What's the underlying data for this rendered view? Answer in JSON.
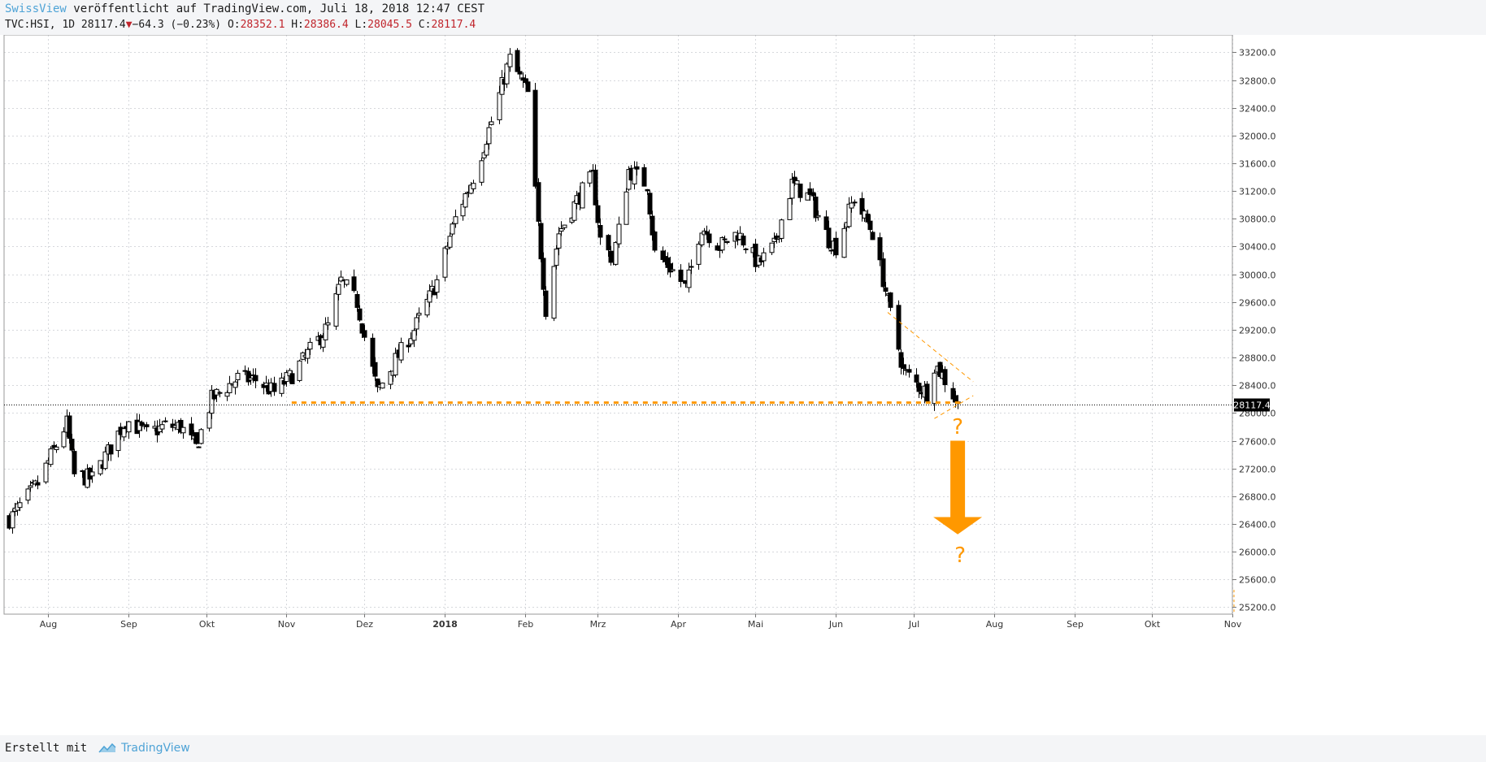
{
  "header": {
    "brand": "SwissView",
    "published": " veröffentlicht auf TradingView.com, Juli 18, 2018 12:47 CEST",
    "symbol": "TVC:HSI, 1D 28117.4",
    "change": "−64.3 (−0.23%)",
    "open_label": "O:",
    "open": "28352.1",
    "high_label": "H:",
    "high": "28386.4",
    "low_label": "L:",
    "low": "28045.5",
    "close_label": "C:",
    "close": "28117.4"
  },
  "footer": {
    "created_with": "Erstellt mit",
    "platform": "TradingView"
  },
  "colors": {
    "up_body": "#ffffff",
    "down_body": "#000000",
    "annotation": "#ff9800",
    "brand": "#4ea3d6",
    "price_label_bg": "#000000"
  },
  "chart_data": {
    "type": "candlestick",
    "symbol": "TVC:HSI",
    "interval": "1D",
    "x_axis_labels": [
      "Aug",
      "Sep",
      "Okt",
      "Nov",
      "Dez",
      "2018",
      "Feb",
      "Mrz",
      "Apr",
      "Mai",
      "Jun",
      "Jul",
      "Aug",
      "Sep",
      "Okt",
      "Nov"
    ],
    "y_ticks": [
      25200,
      25600,
      26000,
      26400,
      26800,
      27200,
      27600,
      28000,
      28400,
      28800,
      29200,
      29600,
      30000,
      30400,
      30800,
      31200,
      31600,
      32000,
      32400,
      32800,
      33200
    ],
    "ylim": [
      25100,
      33450
    ],
    "current_price": 28117.4,
    "current_price_label": "28117.4",
    "grid": true,
    "anchors": [
      [
        "2017-07-17",
        26470
      ],
      [
        "2017-07-28",
        26980
      ],
      [
        "2017-08-08",
        27850
      ],
      [
        "2017-08-11",
        27100
      ],
      [
        "2017-08-18",
        27050
      ],
      [
        "2017-08-31",
        27900
      ],
      [
        "2017-09-08",
        27700
      ],
      [
        "2017-09-15",
        27810
      ],
      [
        "2017-09-21",
        27800
      ],
      [
        "2017-09-27",
        27500
      ],
      [
        "2017-10-03",
        28200
      ],
      [
        "2017-10-13",
        28500
      ],
      [
        "2017-10-20",
        28480
      ],
      [
        "2017-10-27",
        28300
      ],
      [
        "2017-11-03",
        28550
      ],
      [
        "2017-11-17",
        29250
      ],
      [
        "2017-11-22",
        29900
      ],
      [
        "2017-11-28",
        29600
      ],
      [
        "2017-12-01",
        29100
      ],
      [
        "2017-12-06",
        28300
      ],
      [
        "2017-12-12",
        28700
      ],
      [
        "2017-12-20",
        29200
      ],
      [
        "2017-12-29",
        29900
      ],
      [
        "2018-01-05",
        30800
      ],
      [
        "2018-01-12",
        31400
      ],
      [
        "2018-01-19",
        32200
      ],
      [
        "2018-01-26",
        33100
      ],
      [
        "2018-01-29",
        32900
      ],
      [
        "2018-02-02",
        32600
      ],
      [
        "2018-02-06",
        30700
      ],
      [
        "2018-02-09",
        29500
      ],
      [
        "2018-02-14",
        30600
      ],
      [
        "2018-02-23",
        31200
      ],
      [
        "2018-02-27",
        31400
      ],
      [
        "2018-03-02",
        30500
      ],
      [
        "2018-03-07",
        30200
      ],
      [
        "2018-03-13",
        31500
      ],
      [
        "2018-03-20",
        31300
      ],
      [
        "2018-03-23",
        30300
      ],
      [
        "2018-03-29",
        30100
      ],
      [
        "2018-04-04",
        29800
      ],
      [
        "2018-04-10",
        30700
      ],
      [
        "2018-04-17",
        30400
      ],
      [
        "2018-04-24",
        30600
      ],
      [
        "2018-05-02",
        30150
      ],
      [
        "2018-05-08",
        30400
      ],
      [
        "2018-05-15",
        31300
      ],
      [
        "2018-05-22",
        31100
      ],
      [
        "2018-05-29",
        30500
      ],
      [
        "2018-06-01",
        30400
      ],
      [
        "2018-06-08",
        31100
      ],
      [
        "2018-06-15",
        30600
      ],
      [
        "2018-06-21",
        29600
      ],
      [
        "2018-06-27",
        28600
      ],
      [
        "2018-07-04",
        28350
      ],
      [
        "2018-07-06",
        28300
      ],
      [
        "2018-07-09",
        28700
      ],
      [
        "2018-07-12",
        28550
      ],
      [
        "2018-07-18",
        28117
      ]
    ],
    "annotations": {
      "support_level": 28150,
      "question_mark": "?",
      "arrow_direction": "down",
      "arrow_target": 26250
    }
  }
}
